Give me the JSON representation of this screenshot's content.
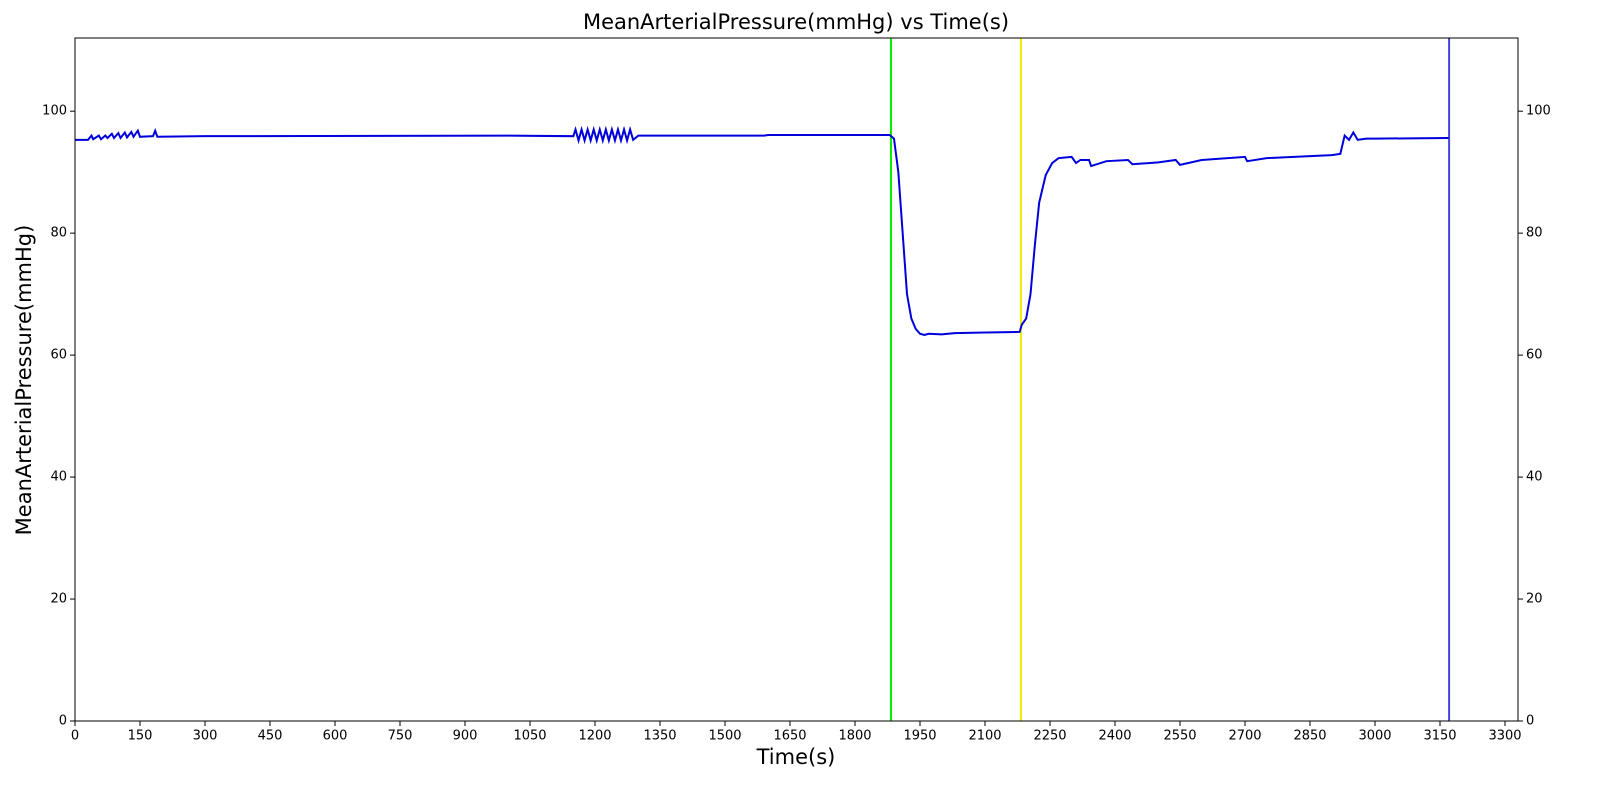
{
  "chart_data": {
    "type": "line",
    "title": "MeanArterialPressure(mmHg) vs Time(s)",
    "xlabel": "Time(s)",
    "ylabel": "MeanArterialPressure(mmHg)",
    "x": [
      0,
      30,
      38,
      42,
      55,
      60,
      70,
      75,
      85,
      90,
      100,
      105,
      115,
      120,
      130,
      135,
      145,
      150,
      180,
      185,
      190,
      300,
      1000,
      1150,
      1155,
      1162,
      1169,
      1176,
      1183,
      1190,
      1197,
      1204,
      1211,
      1218,
      1225,
      1232,
      1239,
      1246,
      1253,
      1260,
      1267,
      1274,
      1281,
      1288,
      1300,
      1590,
      1600,
      1880,
      1890,
      1900,
      1910,
      1920,
      1930,
      1940,
      1950,
      1960,
      1970,
      2000,
      2030,
      2100,
      2180,
      2185,
      2195,
      2205,
      2215,
      2225,
      2240,
      2255,
      2270,
      2300,
      2310,
      2320,
      2340,
      2345,
      2380,
      2430,
      2440,
      2500,
      2540,
      2550,
      2600,
      2700,
      2705,
      2750,
      2900,
      2920,
      2930,
      2940,
      2950,
      2960,
      2980,
      3000,
      3170
    ],
    "series": [
      {
        "name": "MeanArterialPressure",
        "color": "#0000dd",
        "values": [
          95.3,
          95.3,
          96,
          95.4,
          96,
          95.4,
          96,
          95.6,
          96.3,
          95.6,
          96.4,
          95.6,
          96.5,
          95.7,
          96.6,
          95.8,
          96.8,
          95.8,
          95.9,
          96.8,
          95.8,
          95.9,
          96,
          95.9,
          97,
          95.2,
          97,
          95.2,
          97,
          95.2,
          97,
          95.2,
          97,
          95.2,
          97,
          95.2,
          97,
          95.2,
          97,
          95.2,
          97,
          95.2,
          97,
          95.3,
          96,
          96,
          96.1,
          96.1,
          95.5,
          90,
          80,
          70,
          66,
          64.3,
          63.5,
          63.3,
          63.5,
          63.4,
          63.6,
          63.7,
          63.8,
          65,
          66,
          70,
          78,
          85,
          89.5,
          91.5,
          92.3,
          92.5,
          91.5,
          92,
          92,
          91,
          91.8,
          92,
          91.3,
          91.6,
          92,
          91.2,
          92,
          92.5,
          91.8,
          92.3,
          92.8,
          93,
          96,
          95.3,
          96.5,
          95.3,
          95.5,
          95.5,
          95.6
        ]
      }
    ],
    "vlines": [
      {
        "x": 1883,
        "color": "#00ee00"
      },
      {
        "x": 2183,
        "color": "#eeee00"
      },
      {
        "x": 3171,
        "color": "#4444dd"
      }
    ],
    "xlim": [
      0,
      3330
    ],
    "ylim": [
      0,
      112
    ],
    "xticks": [
      0,
      150,
      300,
      450,
      600,
      750,
      900,
      1050,
      1200,
      1350,
      1500,
      1650,
      1800,
      1950,
      2100,
      2250,
      2400,
      2550,
      2700,
      2850,
      3000,
      3150,
      3300
    ],
    "yticks": [
      0,
      20,
      40,
      60,
      80,
      100
    ]
  }
}
